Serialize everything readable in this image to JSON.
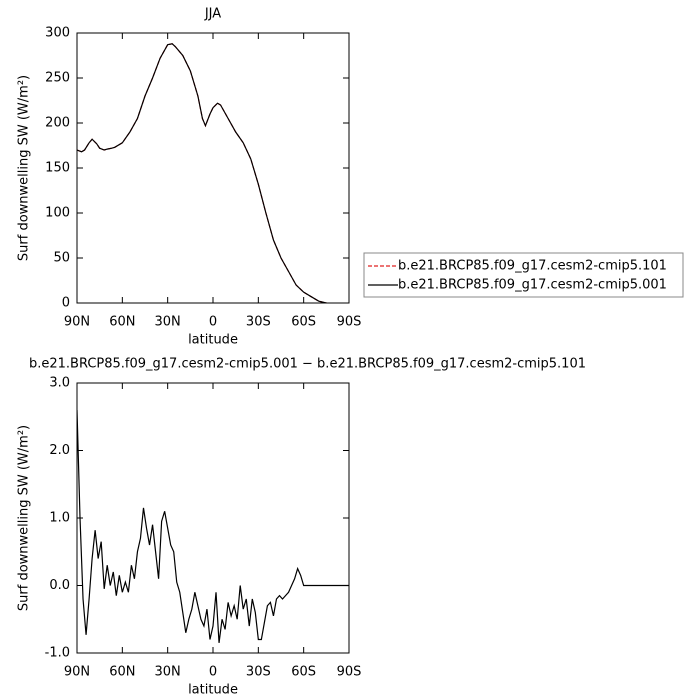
{
  "chart_data": [
    {
      "type": "line",
      "title": "JJA",
      "xlabel": "latitude",
      "ylabel": "Surf downwelling SW (W/m²)",
      "x": [
        90,
        87,
        85,
        82,
        80,
        77,
        75,
        72,
        70,
        67,
        65,
        60,
        55,
        50,
        45,
        40,
        35,
        30,
        27,
        25,
        20,
        15,
        10,
        7,
        5,
        2,
        0,
        -3,
        -5,
        -10,
        -15,
        -20,
        -25,
        -30,
        -35,
        -40,
        -45,
        -50,
        -55,
        -60,
        -65,
        -70,
        -75,
        -80
      ],
      "series": [
        {
          "name": "b.e21.BRCP85.f09_g17.cesm2-cmip5.101",
          "color": "#e02020",
          "dash": true,
          "values": [
            170,
            168,
            170,
            178,
            182,
            177,
            172,
            170,
            171,
            172,
            173,
            178,
            190,
            205,
            230,
            250,
            272,
            287,
            288,
            285,
            275,
            258,
            230,
            205,
            197,
            210,
            217,
            222,
            220,
            205,
            190,
            178,
            160,
            132,
            100,
            70,
            50,
            35,
            20,
            12,
            7,
            2,
            0,
            -2
          ]
        },
        {
          "name": "b.e21.BRCP85.f09_g17.cesm2-cmip5.001",
          "color": "#000000",
          "dash": false,
          "values": [
            170,
            168,
            170,
            178,
            182,
            177,
            172,
            170,
            171,
            172,
            173,
            178,
            190,
            205,
            230,
            250,
            272,
            287,
            288,
            285,
            275,
            258,
            230,
            205,
            197,
            210,
            217,
            222,
            220,
            205,
            190,
            178,
            160,
            132,
            100,
            70,
            50,
            35,
            20,
            12,
            7,
            2,
            0,
            -2
          ]
        }
      ],
      "xlim": [
        90,
        -90
      ],
      "xticks": [
        {
          "value": 90,
          "label": "90N"
        },
        {
          "value": 60,
          "label": "60N"
        },
        {
          "value": 30,
          "label": "30N"
        },
        0,
        {
          "value": -30,
          "label": "30S"
        },
        {
          "value": -60,
          "label": "60S"
        },
        {
          "value": -90,
          "label": "90S"
        }
      ],
      "ylim": [
        0,
        300
      ],
      "yticks": [
        0,
        50,
        100,
        150,
        200,
        250,
        300
      ]
    },
    {
      "type": "line",
      "title": "b.e21.BRCP85.f09_g17.cesm2-cmip5.001 − b.e21.BRCP85.f09_g17.cesm2-cmip5.101",
      "xlabel": "latitude",
      "ylabel": "Surf downwelling SW (W/m²)",
      "x": [
        90,
        88,
        86,
        84,
        82,
        80,
        78,
        76,
        74,
        72,
        70,
        68,
        66,
        64,
        62,
        60,
        58,
        56,
        54,
        52,
        50,
        48,
        46,
        44,
        42,
        40,
        38,
        36,
        34,
        32,
        30,
        28,
        26,
        24,
        22,
        20,
        18,
        16,
        14,
        12,
        10,
        8,
        6,
        4,
        2,
        0,
        -2,
        -4,
        -6,
        -8,
        -10,
        -12,
        -14,
        -16,
        -18,
        -20,
        -22,
        -24,
        -26,
        -28,
        -30,
        -32,
        -34,
        -36,
        -38,
        -40,
        -42,
        -44,
        -46,
        -48,
        -50,
        -52,
        -54,
        -56,
        -58,
        -60,
        -62,
        -64,
        -66,
        -68,
        -70,
        -72,
        -74,
        -76,
        -78,
        -80,
        -82,
        -84,
        -86,
        -88,
        -90
      ],
      "series": [
        {
          "color": "#000000",
          "dash": false,
          "values": [
            2.6,
            1.0,
            -0.2,
            -0.73,
            -0.2,
            0.4,
            0.82,
            0.4,
            0.65,
            -0.05,
            0.3,
            0.0,
            0.2,
            -0.15,
            0.15,
            -0.1,
            0.05,
            -0.1,
            0.3,
            0.1,
            0.5,
            0.7,
            1.15,
            0.85,
            0.6,
            0.9,
            0.5,
            0.1,
            0.95,
            1.1,
            0.85,
            0.6,
            0.5,
            0.05,
            -0.1,
            -0.4,
            -0.7,
            -0.5,
            -0.35,
            -0.1,
            -0.3,
            -0.5,
            -0.6,
            -0.35,
            -0.8,
            -0.6,
            -0.1,
            -0.85,
            -0.5,
            -0.65,
            -0.25,
            -0.45,
            -0.3,
            -0.5,
            0.0,
            -0.35,
            -0.2,
            -0.6,
            -0.2,
            -0.4,
            -0.8,
            -0.8,
            -0.55,
            -0.3,
            -0.25,
            -0.45,
            -0.2,
            -0.15,
            -0.2,
            -0.15,
            -0.1,
            0.0,
            0.1,
            0.25,
            0.15,
            0.0,
            0.0,
            0.0,
            0.0,
            0.0,
            0.0,
            0.0,
            0.0,
            0.0,
            0.0,
            0.0,
            0.0,
            0.0,
            0.0,
            0.0,
            0.0
          ]
        }
      ],
      "xlim": [
        90,
        -90
      ],
      "xticks": [
        {
          "value": 90,
          "label": "90N"
        },
        {
          "value": 60,
          "label": "60N"
        },
        {
          "value": 30,
          "label": "30N"
        },
        0,
        {
          "value": -30,
          "label": "30S"
        },
        {
          "value": -60,
          "label": "60S"
        },
        {
          "value": -90,
          "label": "90S"
        }
      ],
      "ylim": [
        -1,
        3
      ],
      "yticks": [
        {
          "value": -1,
          "label": "-1.0"
        },
        {
          "value": 0,
          "label": "0.0"
        },
        {
          "value": 1,
          "label": "1.0"
        },
        {
          "value": 2,
          "label": "2.0"
        },
        {
          "value": 3,
          "label": "3.0"
        }
      ]
    }
  ]
}
